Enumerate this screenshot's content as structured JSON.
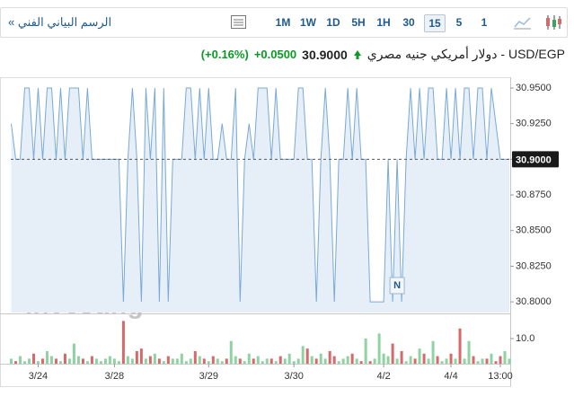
{
  "toolbar": {
    "link": "الرسم البياني الفني »",
    "buttons": [
      "1M",
      "1W",
      "1D",
      "5H",
      "1H",
      "30",
      "15",
      "5",
      "1"
    ],
    "selected": "15"
  },
  "header": {
    "title": "USD/EGP - دولار أمريكي جنيه مصري",
    "price": "30.9000",
    "change": "+0.0500",
    "percent": "(+0.16%)"
  },
  "watermark": {
    "brand": "Investing",
    "suffix": ".com"
  },
  "marker": "N",
  "chart_data": {
    "type": "area",
    "series": [
      {
        "name": "USD/EGP",
        "color": "#79a9d6",
        "fill": "#e6eff8",
        "values": [
          30.925,
          30.9,
          30.9,
          30.95,
          30.95,
          30.9,
          30.95,
          30.9,
          30.95,
          30.95,
          30.9,
          30.95,
          30.9,
          30.95,
          30.95,
          30.95,
          30.9,
          30.95,
          30.9,
          30.9,
          30.9,
          30.9,
          30.9,
          30.9,
          30.9,
          30.8,
          30.9,
          30.95,
          30.9,
          30.8,
          30.95,
          30.9,
          30.95,
          30.8,
          30.95,
          30.8,
          30.9,
          30.9,
          30.9,
          30.95,
          30.95,
          30.9,
          30.95,
          30.9,
          30.95,
          30.9,
          30.9,
          30.925,
          30.9,
          30.9,
          30.95,
          30.8,
          30.9,
          30.925,
          30.9,
          30.95,
          30.95,
          30.95,
          30.9,
          30.95,
          30.9,
          30.9,
          30.9,
          30.9,
          30.95,
          30.95,
          30.9,
          30.9,
          30.8,
          30.9,
          30.95,
          30.9,
          30.8,
          30.9,
          30.9,
          30.95,
          30.9,
          30.95,
          30.9,
          30.9,
          30.8,
          30.8,
          30.8,
          30.8,
          30.9,
          30.8,
          30.9,
          30.8,
          30.9,
          30.95,
          30.9,
          30.95,
          30.9,
          30.95,
          30.95,
          30.9,
          30.9,
          30.95,
          30.9,
          30.95,
          30.9,
          30.95,
          30.95,
          30.9,
          30.95,
          30.95,
          30.9,
          30.95,
          30.925,
          30.9,
          30.9,
          30.9
        ]
      }
    ],
    "volume": {
      "up_color": "#8fd3a2",
      "down_color": "#d46a6a",
      "values": [
        2,
        1,
        3,
        1,
        2,
        4,
        1,
        2,
        5,
        3,
        2,
        1,
        4,
        2,
        8,
        3,
        2,
        1,
        3,
        2,
        1,
        2,
        3,
        2,
        1,
        17,
        3,
        2,
        5,
        6,
        2,
        3,
        4,
        2,
        1,
        3,
        2,
        2,
        4,
        1,
        2,
        5,
        3,
        2,
        1,
        3,
        2,
        1,
        2,
        9,
        3,
        2,
        1,
        4,
        2,
        3,
        1,
        2,
        2,
        1,
        3,
        2,
        4,
        1,
        2,
        7,
        6,
        3,
        2,
        4,
        2,
        5,
        3,
        1,
        2,
        3,
        4,
        2,
        1,
        10,
        1,
        2,
        12,
        4,
        3,
        8,
        2,
        5,
        1,
        3,
        2,
        6,
        4,
        2,
        9,
        3,
        1,
        2,
        4,
        2,
        14,
        2,
        9,
        3,
        1,
        2,
        2,
        4,
        1,
        3,
        5,
        2
      ],
      "ylim": [
        0,
        18.9
      ],
      "yticks": [
        {
          "value": 10,
          "label": "10.0"
        }
      ]
    },
    "xlim": [
      -0.1,
      111.2
    ],
    "xticks": [
      {
        "value": 6,
        "label": "3/24"
      },
      {
        "value": 23,
        "label": "3/28"
      },
      {
        "value": 44,
        "label": "3/29"
      },
      {
        "value": 63,
        "label": "3/30"
      },
      {
        "value": 83,
        "label": "4/2"
      },
      {
        "value": 98,
        "label": "4/4"
      },
      {
        "value": 109,
        "label": "13:00"
      }
    ],
    "ylim": [
      30.7925,
      30.9563
    ],
    "yticks": [
      {
        "value": 30.95,
        "label": "30.9500"
      },
      {
        "value": 30.925,
        "label": "30.9250"
      },
      {
        "value": 30.9,
        "label": "30.9000"
      },
      {
        "value": 30.875,
        "label": "30.8750"
      },
      {
        "value": 30.85,
        "label": "30.8500"
      },
      {
        "value": 30.825,
        "label": "30.8250"
      },
      {
        "value": 30.8,
        "label": "30.8000"
      }
    ],
    "last_price": {
      "value": 30.9,
      "label": "30.9000"
    },
    "marker_index": 86
  }
}
